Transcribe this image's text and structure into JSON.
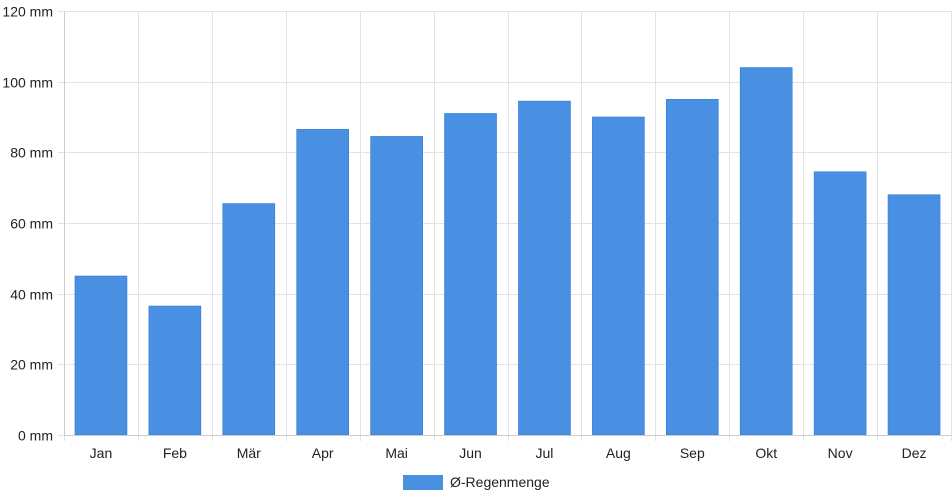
{
  "chart_data": {
    "type": "bar",
    "categories": [
      "Jan",
      "Feb",
      "Mär",
      "Apr",
      "Mai",
      "Jun",
      "Jul",
      "Aug",
      "Sep",
      "Okt",
      "Nov",
      "Dez"
    ],
    "series": [
      {
        "name": "Ø-Regenmenge",
        "values": [
          45,
          36.5,
          65.5,
          86.5,
          84.5,
          91,
          94.5,
          90,
          95,
          104,
          74.5,
          68
        ],
        "color": "#4a90e2"
      }
    ],
    "y_ticks": [
      "0 mm",
      "20 mm",
      "40 mm",
      "60 mm",
      "80 mm",
      "100 mm",
      "120 mm"
    ],
    "y_tick_values": [
      0,
      20,
      40,
      60,
      80,
      100,
      120
    ],
    "ylim": [
      0,
      120
    ],
    "grid": true,
    "legend_position": "bottom"
  }
}
